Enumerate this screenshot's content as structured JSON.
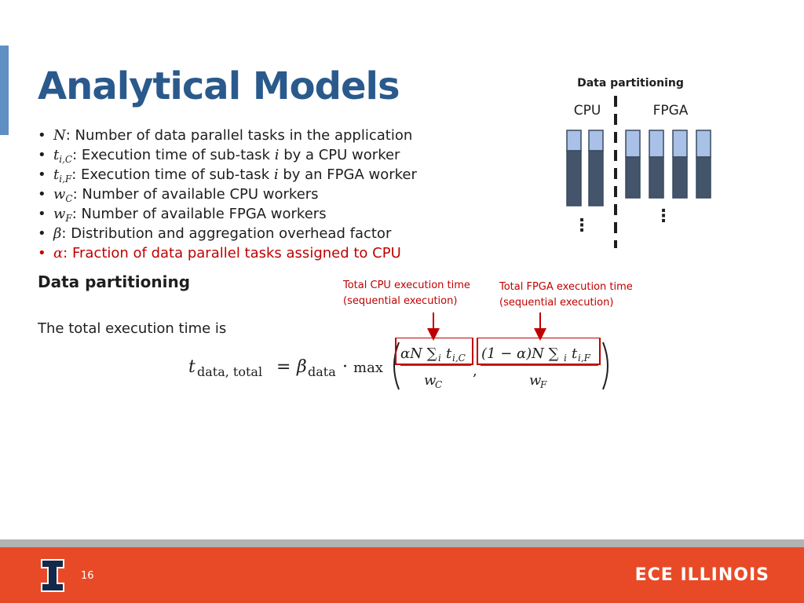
{
  "slide": {
    "title": "Analytical Models",
    "page_number": "16",
    "brand": "ECE ILLINOIS"
  },
  "bullets": [
    {
      "symbol": "N",
      "subscript": "",
      "text": ": Number of data parallel tasks in the application"
    },
    {
      "symbol": "t",
      "subscript": "i,C",
      "text": ": Execution time of sub-task ",
      "symbol2": "i",
      "text2": " by a CPU worker"
    },
    {
      "symbol": "t",
      "subscript": "i,F",
      "text": ": Execution time of sub-task ",
      "symbol2": "i",
      "text2": " by an FPGA worker"
    },
    {
      "symbol": "w",
      "subscript": "C",
      "text": ": Number of available CPU workers"
    },
    {
      "symbol": "w",
      "subscript": "F",
      "text": ": Number of available FPGA workers"
    },
    {
      "symbol": "β",
      "subscript": "",
      "text": ": Distribution and aggregation overhead factor"
    },
    {
      "symbol": "α",
      "subscript": "",
      "text": ": Fraction of data parallel tasks assigned to CPU"
    }
  ],
  "bullet_char": "•",
  "section": {
    "heading": "Data partitioning",
    "total_text": "The total execution time is"
  },
  "annotations": {
    "cpu_line1": "Total CPU execution time",
    "cpu_line2": "(sequential execution)",
    "fpga_line1": "Total FPGA execution time",
    "fpga_line2": "(sequential execution)"
  },
  "equation": {
    "lhs_var": "t",
    "lhs_sub": "data, total",
    "equals": "=",
    "beta": "β",
    "beta_sub": "data",
    "dot": "·",
    "max": "max",
    "cpu_num": "αN ∑",
    "cpu_num_sub_i": "i",
    "cpu_num_t": "t",
    "cpu_num_t_sub": "i,C",
    "cpu_den": "w",
    "cpu_den_sub": "C",
    "comma": ",",
    "fpga_num": "(1 − α)N ∑",
    "fpga_num_sub_i": "i",
    "fpga_num_t": "t",
    "fpga_num_t_sub": "i,F",
    "fpga_den": "w",
    "fpga_den_sub": "F"
  },
  "diagram": {
    "title": "Data partitioning",
    "cpu_label": "CPU",
    "fpga_label": "FPGA",
    "ellipsis": "⋮",
    "colors": {
      "light": "#a9c1e6",
      "dark": "#44546a",
      "border": "#3a4a60"
    }
  },
  "colors": {
    "title": "#2a5a8c",
    "accent_red": "#c00000",
    "footer_orange": "#e84a27",
    "footer_gray": "#b3b3b3",
    "illinois_blue": "#13294b"
  }
}
